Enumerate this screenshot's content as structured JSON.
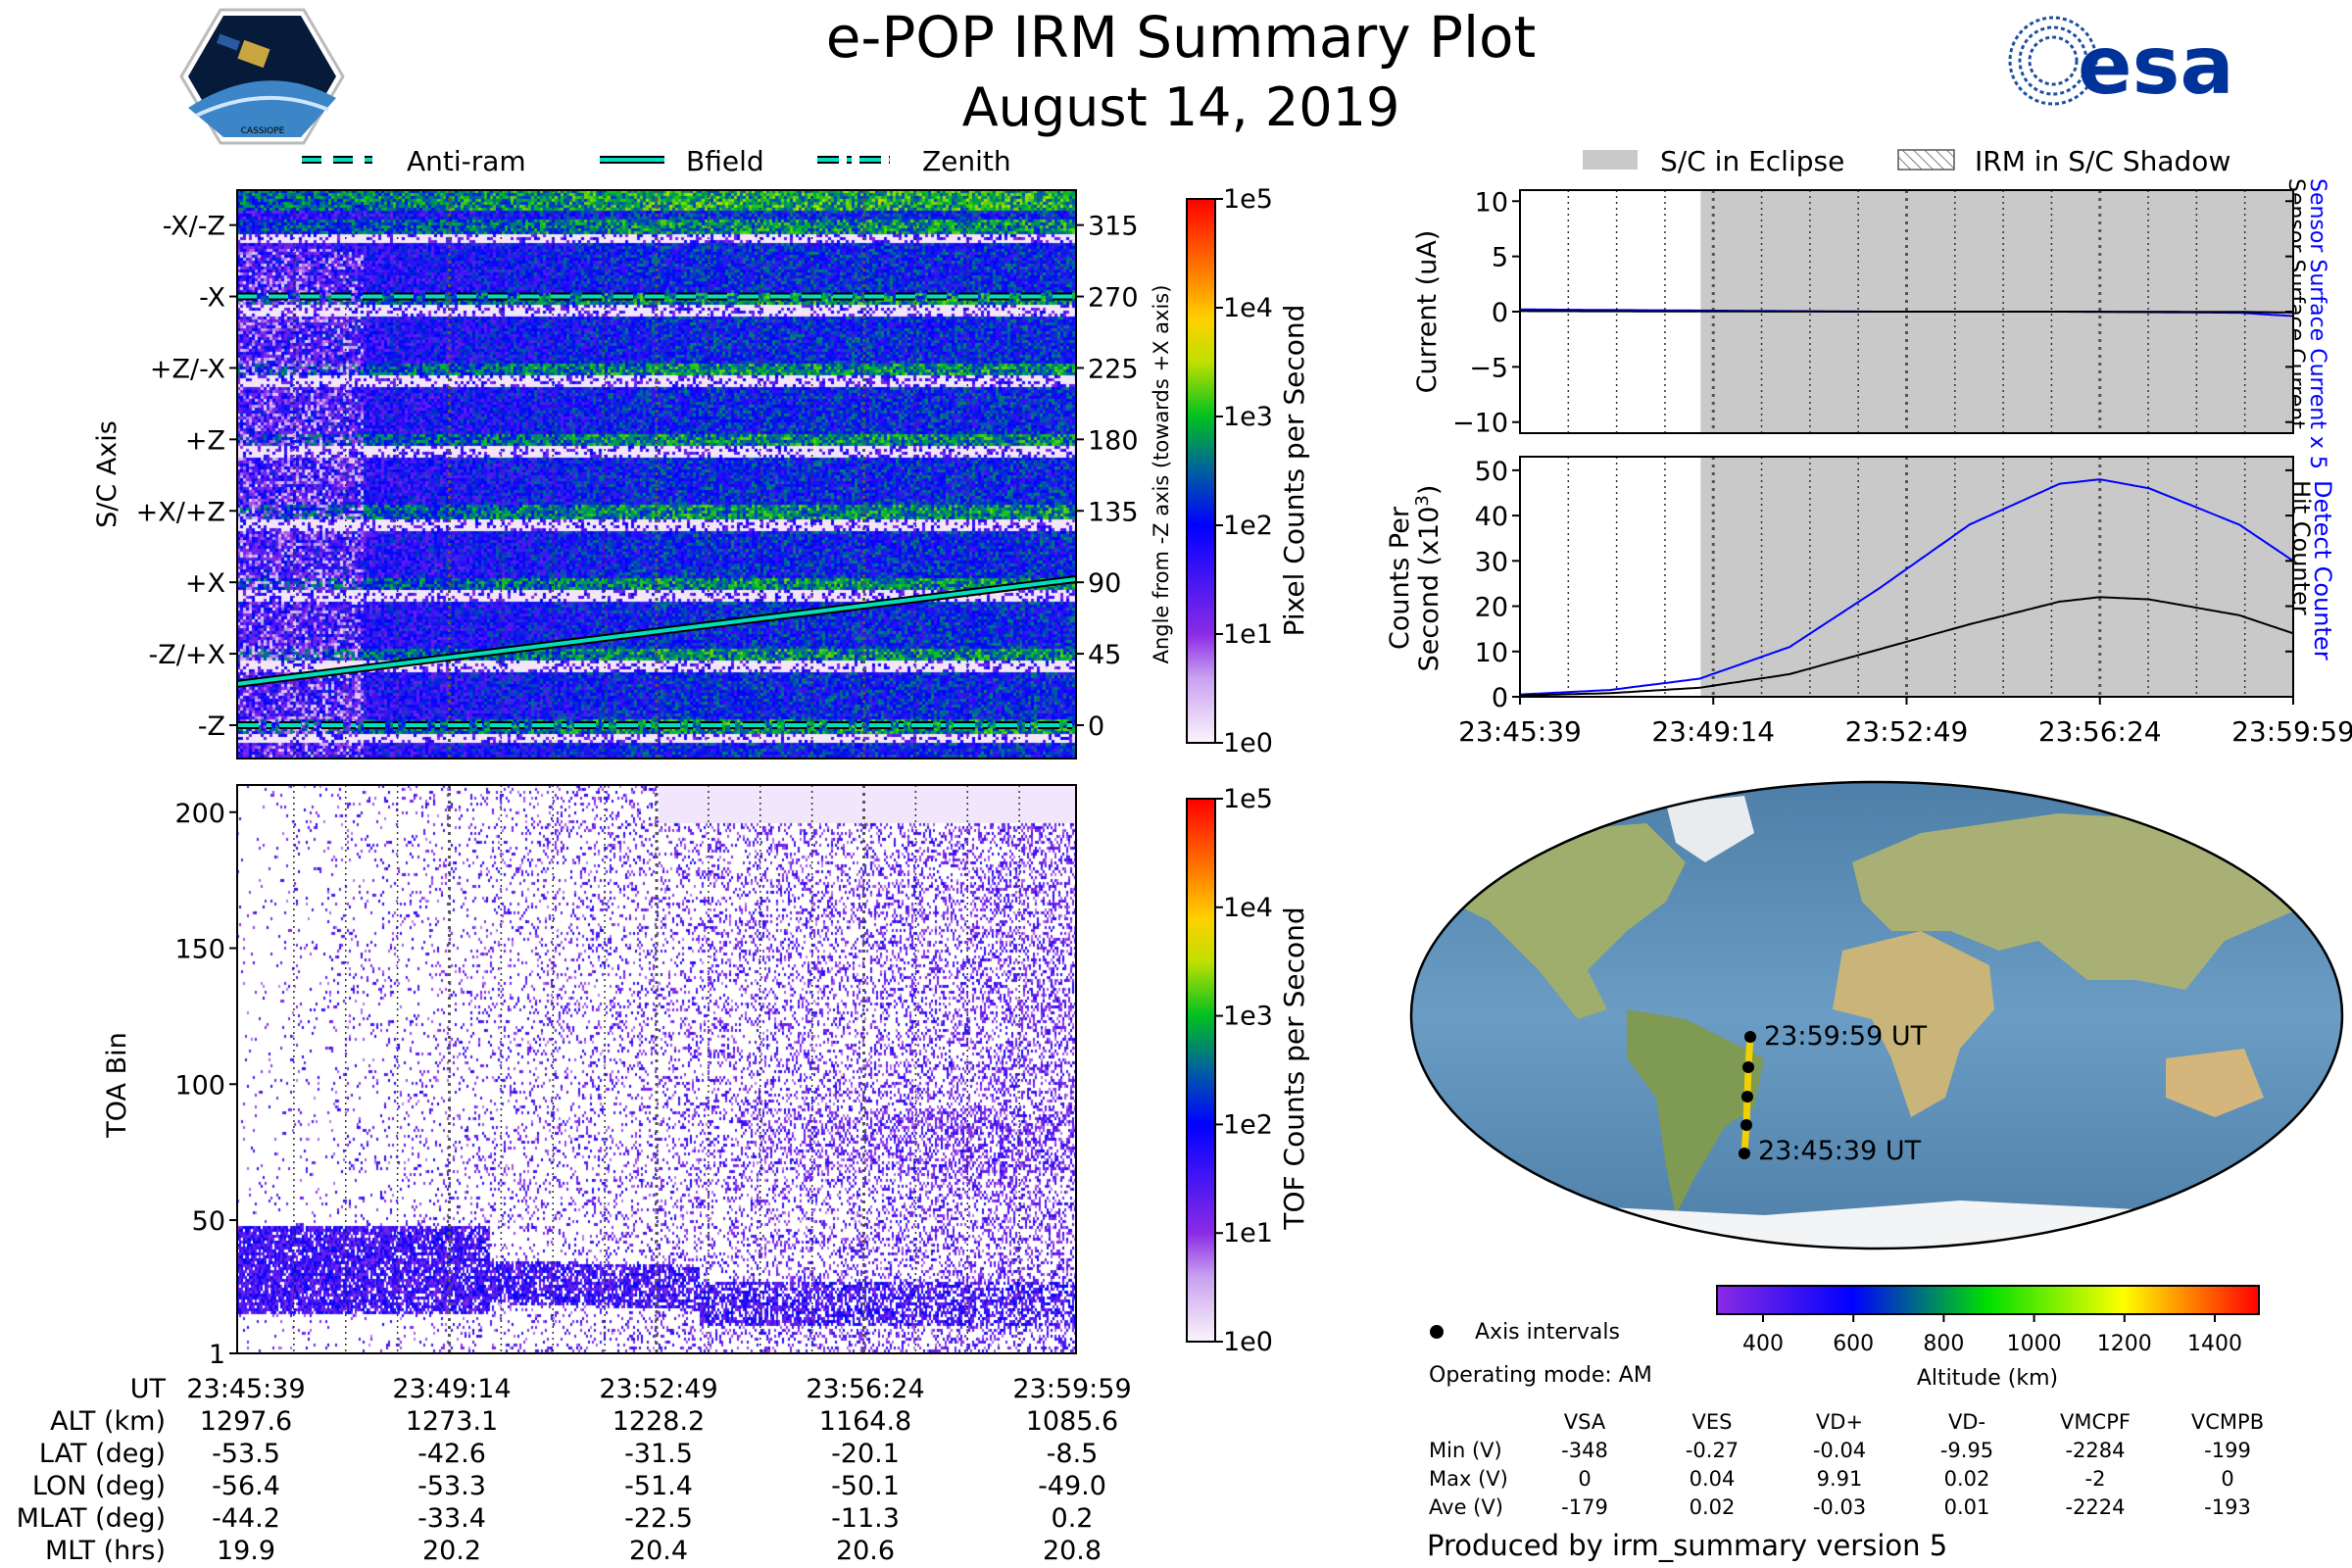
{
  "title": "e-POP IRM Summary Plot",
  "date": "August 14, 2019",
  "logos": {
    "left": "CASSIOPE",
    "right": "esa"
  },
  "colors": {
    "accent_blue": "#0000ff",
    "eclipse_gray": "#c8c9c8",
    "bfield": "#00e0c0",
    "esa_blue": "#003399"
  },
  "chart_data": [
    {
      "type": "heatmap",
      "name": "pixel-spectrogram",
      "ylabel": "S/C Axis",
      "ylabel_right": "Angle from -Z axis (towards +X axis)",
      "ylim": [
        -21,
        337
      ],
      "axis_labels": [
        {
          "angle": 315,
          "label": "-X/-Z"
        },
        {
          "angle": 270,
          "label": "-X"
        },
        {
          "angle": 225,
          "label": "+Z/-X"
        },
        {
          "angle": 180,
          "label": "+Z"
        },
        {
          "angle": 135,
          "label": "+X/+Z"
        },
        {
          "angle": 90,
          "label": "+X"
        },
        {
          "angle": 45,
          "label": "-Z/+X"
        },
        {
          "angle": 0,
          "label": "-Z"
        }
      ],
      "right_ticks": [
        "315",
        "270",
        "225",
        "180",
        "135",
        "90",
        "45",
        "0"
      ],
      "legend": [
        "Anti-ram",
        "Bfield",
        "Zenith"
      ],
      "lines": {
        "anti_ram_deg": 270,
        "zenith_deg": 0,
        "bfield_deg": [
          [
            0,
            26
          ],
          [
            860,
            92
          ]
        ]
      },
      "colorbar": {
        "label": "Pixel Counts per Second",
        "ticks": [
          "1e5",
          "1e4",
          "1e3",
          "1e2",
          "1e1",
          "1e0"
        ]
      }
    },
    {
      "type": "heatmap",
      "name": "tof-spectrogram",
      "ylabel": "TOA Bin",
      "ylim": [
        1,
        210
      ],
      "yticks": [
        "200",
        "150",
        "100",
        "50",
        "1"
      ],
      "colorbar": {
        "label": "TOF Counts per Second",
        "ticks": [
          "1e5",
          "1e4",
          "1e3",
          "1e2",
          "1e1",
          "1e0"
        ]
      }
    },
    {
      "type": "line",
      "name": "current",
      "ylabel": "Current (uA)",
      "ylim": [
        -11,
        11
      ],
      "yticks": [
        "10",
        "5",
        "0",
        "−5",
        "−10"
      ],
      "right_labels": {
        "blue": "Sensor Surface Current x 5",
        "black": "Sensor Surface Current"
      },
      "x_seconds": [
        0,
        200,
        400,
        600,
        800,
        860
      ],
      "series": [
        {
          "name": "Sensor Surface Current x 5",
          "color": "#0000ff",
          "values": [
            0.2,
            0.1,
            0.0,
            0.0,
            -0.1,
            -0.4
          ]
        },
        {
          "name": "Sensor Surface Current",
          "color": "#000000",
          "values": [
            0.05,
            0.02,
            0.0,
            0.0,
            -0.02,
            -0.08
          ]
        }
      ]
    },
    {
      "type": "line",
      "name": "counts",
      "ylabel": "Counts Per Second (x10³)",
      "ylim": [
        0,
        53
      ],
      "yticks": [
        "50",
        "40",
        "30",
        "20",
        "10",
        "0"
      ],
      "right_labels": {
        "blue": "Detect Counter",
        "black": "Hit Counter"
      },
      "xticks": [
        "23:45:39",
        "23:49:14",
        "23:52:49",
        "23:56:24",
        "23:59:59"
      ],
      "x_seconds": [
        0,
        100,
        200,
        300,
        400,
        500,
        600,
        645,
        700,
        800,
        860
      ],
      "series": [
        {
          "name": "Detect Counter",
          "color": "#0000ff",
          "values": [
            0.5,
            1.5,
            4,
            11,
            24,
            38,
            47,
            48,
            46,
            38,
            30
          ]
        },
        {
          "name": "Hit Counter",
          "color": "#000000",
          "values": [
            0.3,
            0.8,
            2,
            5,
            10.5,
            16,
            21,
            22,
            21.5,
            18,
            14
          ]
        }
      ],
      "eclipse_start_seconds": 201
    }
  ],
  "legend_right": {
    "eclipse": "S/C in Eclipse",
    "shadow": "IRM in S/C Shadow"
  },
  "map": {
    "track_labels": {
      "end": "23:59:59 UT",
      "start": "23:45:39 UT"
    },
    "track_points": [
      [
        -49.0,
        -8.5
      ],
      [
        -50.1,
        -20.1
      ],
      [
        -51.4,
        -31.5
      ],
      [
        -53.3,
        -42.6
      ],
      [
        -56.4,
        -53.5
      ]
    ],
    "colorbar": {
      "label": "Altitude (km)",
      "ticks": [
        "400",
        "600",
        "800",
        "1000",
        "1200",
        "1400"
      ]
    },
    "legend": "Axis intervals",
    "mode": "Operating mode: AM"
  },
  "ephemeris": {
    "rows": [
      {
        "label": "UT",
        "values": [
          "23:45:39",
          "23:49:14",
          "23:52:49",
          "23:56:24",
          "23:59:59"
        ]
      },
      {
        "label": "ALT (km)",
        "values": [
          "1297.6",
          "1273.1",
          "1228.2",
          "1164.8",
          "1085.6"
        ]
      },
      {
        "label": "LAT (deg)",
        "values": [
          "-53.5",
          "-42.6",
          "-31.5",
          "-20.1",
          "-8.5"
        ]
      },
      {
        "label": "LON (deg)",
        "values": [
          "-56.4",
          "-53.3",
          "-51.4",
          "-50.1",
          "-49.0"
        ]
      },
      {
        "label": "MLAT (deg)",
        "values": [
          "-44.2",
          "-33.4",
          "-22.5",
          "-11.3",
          "0.2"
        ]
      },
      {
        "label": "MLT (hrs)",
        "values": [
          "19.9",
          "20.2",
          "20.4",
          "20.6",
          "20.8"
        ]
      }
    ]
  },
  "voltages": {
    "headers": [
      "VSA",
      "VES",
      "VD+",
      "VD-",
      "VMCPF",
      "VCMPB"
    ],
    "rows": [
      {
        "label": "Min (V)",
        "values": [
          "-348",
          "-0.27",
          "-0.04",
          "-9.95",
          "-2284",
          "-199"
        ]
      },
      {
        "label": "Max (V)",
        "values": [
          "0",
          "0.04",
          "9.91",
          "0.02",
          "-2",
          "0"
        ]
      },
      {
        "label": "Ave (V)",
        "values": [
          "-179",
          "0.02",
          "-0.03",
          "0.01",
          "-2224",
          "-193"
        ]
      }
    ]
  },
  "footer": "Produced by irm_summary version 5"
}
